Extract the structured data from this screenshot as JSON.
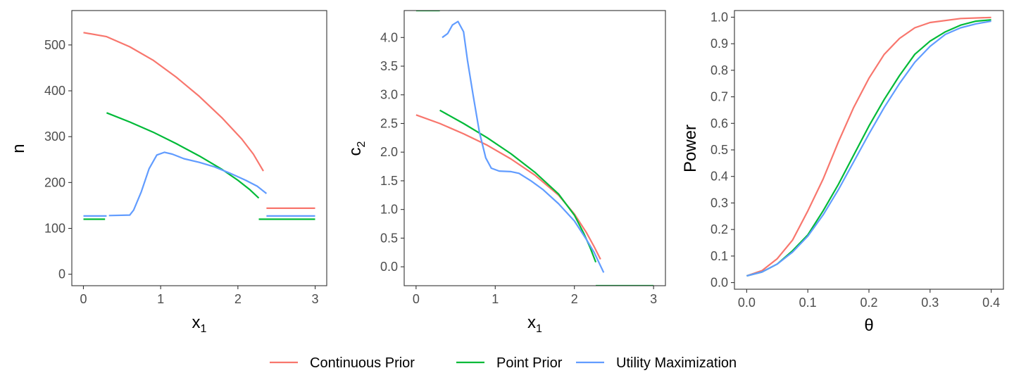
{
  "legend": {
    "items": [
      {
        "label": "Continuous Prior",
        "color": "#F8766D"
      },
      {
        "label": "Point Prior",
        "color": "#00BA38"
      },
      {
        "label": "Utility Maximization",
        "color": "#619CFF"
      }
    ]
  },
  "chart_data": [
    {
      "type": "line",
      "xlabel": "x",
      "xlabel_sub": "1",
      "ylabel": "n",
      "xlim": [
        -0.15,
        3.15
      ],
      "ylim": [
        -25,
        575
      ],
      "xticks": [
        0,
        1,
        2,
        3
      ],
      "yticks": [
        0,
        100,
        200,
        300,
        400,
        500
      ],
      "grid": false,
      "series": [
        {
          "name": "Continuous Prior",
          "color": "#F8766D",
          "segments": [
            [
              [
                0,
                527
              ],
              [
                0.3,
                518
              ],
              [
                0.6,
                496
              ],
              [
                0.9,
                467
              ],
              [
                1.2,
                430
              ],
              [
                1.5,
                388
              ],
              [
                1.8,
                340
              ],
              [
                2.05,
                295
              ],
              [
                2.2,
                262
              ],
              [
                2.33,
                225
              ]
            ],
            [
              [
                2.37,
                144
              ],
              [
                3,
                144
              ]
            ]
          ]
        },
        {
          "name": "Point Prior",
          "color": "#00BA38",
          "segments": [
            [
              [
                0,
                120
              ],
              [
                0.28,
                120
              ]
            ],
            [
              [
                0.3,
                352
              ],
              [
                0.6,
                332
              ],
              [
                0.9,
                310
              ],
              [
                1.2,
                285
              ],
              [
                1.5,
                258
              ],
              [
                1.8,
                228
              ],
              [
                2.0,
                205
              ],
              [
                2.15,
                185
              ],
              [
                2.27,
                166
              ]
            ],
            [
              [
                2.27,
                120
              ],
              [
                3,
                120
              ]
            ]
          ]
        },
        {
          "name": "Utility Maximization",
          "color": "#619CFF",
          "segments": [
            [
              [
                0,
                127
              ],
              [
                0.3,
                127
              ]
            ],
            [
              [
                0.33,
                128
              ],
              [
                0.6,
                129
              ],
              [
                0.65,
                140
              ],
              [
                0.75,
                180
              ],
              [
                0.85,
                230
              ],
              [
                0.95,
                260
              ],
              [
                1.05,
                266
              ],
              [
                1.15,
                262
              ],
              [
                1.3,
                252
              ],
              [
                1.5,
                244
              ],
              [
                1.7,
                234
              ],
              [
                1.9,
                220
              ],
              [
                2.1,
                205
              ],
              [
                2.25,
                192
              ],
              [
                2.37,
                176
              ]
            ],
            [
              [
                2.37,
                127
              ],
              [
                3,
                127
              ]
            ]
          ]
        }
      ]
    },
    {
      "type": "line",
      "xlabel": "x",
      "xlabel_sub": "1",
      "ylabel": "c",
      "ylabel_sub": "2",
      "xlim": [
        -0.15,
        3.15
      ],
      "ylim": [
        -0.33,
        4.47
      ],
      "xticks": [
        0,
        1,
        2,
        3
      ],
      "yticks": [
        0.0,
        0.5,
        1.0,
        1.5,
        2.0,
        2.5,
        3.0,
        3.5,
        4.0
      ],
      "ytick_labels": [
        "0.0",
        "0.5",
        "1.0",
        "1.5",
        "2.0",
        "2.5",
        "3.0",
        "3.5",
        "4.0"
      ],
      "grid": false,
      "series": [
        {
          "name": "Continuous Prior",
          "color": "#F8766D",
          "segments": [
            [
              [
                0,
                2.65
              ],
              [
                0.3,
                2.5
              ],
              [
                0.6,
                2.32
              ],
              [
                0.9,
                2.12
              ],
              [
                1.2,
                1.88
              ],
              [
                1.5,
                1.6
              ],
              [
                1.8,
                1.25
              ],
              [
                2.0,
                0.92
              ],
              [
                2.15,
                0.6
              ],
              [
                2.25,
                0.35
              ],
              [
                2.33,
                0.13
              ]
            ]
          ]
        },
        {
          "name": "Point Prior",
          "color": "#00BA38",
          "segments": [
            [
              [
                0,
                4.47
              ],
              [
                0.3,
                4.47
              ]
            ],
            [
              [
                0.3,
                2.73
              ],
              [
                0.6,
                2.5
              ],
              [
                0.9,
                2.25
              ],
              [
                1.2,
                1.97
              ],
              [
                1.5,
                1.65
              ],
              [
                1.8,
                1.27
              ],
              [
                2.0,
                0.9
              ],
              [
                2.12,
                0.58
              ],
              [
                2.2,
                0.33
              ],
              [
                2.27,
                0.08
              ]
            ],
            [
              [
                2.27,
                -0.33
              ],
              [
                3,
                -0.33
              ]
            ]
          ]
        },
        {
          "name": "Utility Maximization",
          "color": "#619CFF",
          "segments": [
            [
              [
                0.33,
                4.0
              ],
              [
                0.4,
                4.07
              ],
              [
                0.46,
                4.22
              ],
              [
                0.53,
                4.28
              ],
              [
                0.6,
                4.1
              ],
              [
                0.65,
                3.6
              ],
              [
                0.72,
                3.0
              ],
              [
                0.8,
                2.35
              ],
              [
                0.88,
                1.9
              ],
              [
                0.95,
                1.72
              ],
              [
                1.05,
                1.67
              ],
              [
                1.2,
                1.66
              ],
              [
                1.3,
                1.63
              ],
              [
                1.45,
                1.5
              ],
              [
                1.6,
                1.35
              ],
              [
                1.8,
                1.1
              ],
              [
                2.0,
                0.8
              ],
              [
                2.15,
                0.48
              ],
              [
                2.25,
                0.25
              ],
              [
                2.37,
                -0.1
              ]
            ]
          ]
        }
      ]
    },
    {
      "type": "line",
      "xlabel": "θ",
      "ylabel": "Power",
      "xlim": [
        -0.02,
        0.42
      ],
      "ylim": [
        -0.025,
        1.025
      ],
      "xticks": [
        0.0,
        0.1,
        0.2,
        0.3,
        0.4
      ],
      "xtick_labels": [
        "0.0",
        "0.1",
        "0.2",
        "0.3",
        "0.4"
      ],
      "yticks": [
        0.0,
        0.1,
        0.2,
        0.3,
        0.4,
        0.5,
        0.6,
        0.7,
        0.8,
        0.9,
        1.0
      ],
      "ytick_labels": [
        "0.0",
        "0.1",
        "0.2",
        "0.3",
        "0.4",
        "0.5",
        "0.6",
        "0.7",
        "0.8",
        "0.9",
        "1.0"
      ],
      "grid": false,
      "series": [
        {
          "name": "Continuous Prior",
          "color": "#F8766D",
          "segments": [
            [
              [
                0,
                0.025
              ],
              [
                0.025,
                0.045
              ],
              [
                0.05,
                0.09
              ],
              [
                0.075,
                0.16
              ],
              [
                0.1,
                0.27
              ],
              [
                0.125,
                0.39
              ],
              [
                0.15,
                0.53
              ],
              [
                0.175,
                0.66
              ],
              [
                0.2,
                0.77
              ],
              [
                0.225,
                0.86
              ],
              [
                0.25,
                0.92
              ],
              [
                0.275,
                0.96
              ],
              [
                0.3,
                0.98
              ],
              [
                0.35,
                0.995
              ],
              [
                0.4,
                0.999
              ]
            ]
          ]
        },
        {
          "name": "Point Prior",
          "color": "#00BA38",
          "segments": [
            [
              [
                0,
                0.025
              ],
              [
                0.025,
                0.04
              ],
              [
                0.05,
                0.07
              ],
              [
                0.075,
                0.12
              ],
              [
                0.1,
                0.18
              ],
              [
                0.125,
                0.27
              ],
              [
                0.15,
                0.37
              ],
              [
                0.175,
                0.48
              ],
              [
                0.2,
                0.59
              ],
              [
                0.225,
                0.69
              ],
              [
                0.25,
                0.78
              ],
              [
                0.275,
                0.86
              ],
              [
                0.3,
                0.91
              ],
              [
                0.325,
                0.945
              ],
              [
                0.35,
                0.97
              ],
              [
                0.375,
                0.985
              ],
              [
                0.4,
                0.99
              ]
            ]
          ]
        },
        {
          "name": "Utility Maximization",
          "color": "#619CFF",
          "segments": [
            [
              [
                0,
                0.025
              ],
              [
                0.025,
                0.04
              ],
              [
                0.05,
                0.07
              ],
              [
                0.075,
                0.115
              ],
              [
                0.1,
                0.175
              ],
              [
                0.125,
                0.255
              ],
              [
                0.15,
                0.35
              ],
              [
                0.175,
                0.455
              ],
              [
                0.2,
                0.56
              ],
              [
                0.225,
                0.66
              ],
              [
                0.25,
                0.75
              ],
              [
                0.275,
                0.83
              ],
              [
                0.3,
                0.89
              ],
              [
                0.325,
                0.935
              ],
              [
                0.35,
                0.96
              ],
              [
                0.375,
                0.975
              ],
              [
                0.4,
                0.985
              ]
            ]
          ]
        }
      ]
    }
  ]
}
